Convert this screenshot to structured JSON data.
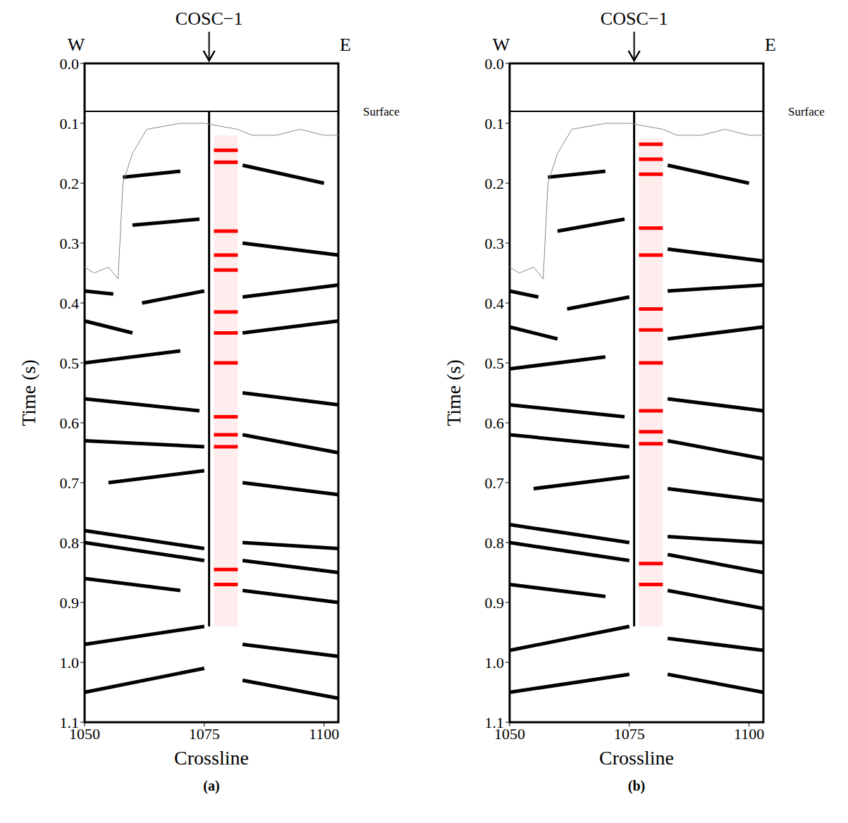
{
  "chart_data": [
    {
      "type": "seismic",
      "panel_label": "(a)",
      "x_label": "Crossline",
      "y_label": "Time (s)",
      "xlim": [
        1050,
        1103
      ],
      "xticks": [
        1050,
        1075,
        1100
      ],
      "ylim": [
        0,
        1.1
      ],
      "yticks": [
        {
          "value": 0,
          "label": "0.0"
        },
        0.1,
        0.2,
        0.3,
        0.4,
        0.5,
        0.6,
        0.7,
        0.8,
        0.9,
        {
          "value": 1,
          "label": "1.0"
        },
        1.1
      ],
      "west_label": "W",
      "east_label": "E",
      "well": {
        "text": "COSC−1",
        "x": 1076,
        "top": 0.08,
        "bottom": 0.94
      },
      "surface": {
        "text": "Surface",
        "time": 0.08
      },
      "first_break": {
        "x": [
          1050,
          1052,
          1055,
          1057,
          1058,
          1060,
          1063,
          1070,
          1075,
          1082,
          1085,
          1090,
          1095,
          1100,
          1103
        ],
        "t": [
          0.34,
          0.35,
          0.34,
          0.36,
          0.2,
          0.15,
          0.11,
          0.1,
          0.1,
          0.11,
          0.12,
          0.12,
          0.11,
          0.12,
          0.12
        ]
      },
      "vsp": {
        "x_start": 1077,
        "x_end": 1082,
        "top": 0.12,
        "bottom": 0.94,
        "color": "#ff0000",
        "events": [
          0.145,
          0.165,
          0.28,
          0.32,
          0.345,
          0.415,
          0.45,
          0.5,
          0.59,
          0.62,
          0.64,
          0.845,
          0.87
        ]
      },
      "reflectors": [
        [
          1050,
          0.38,
          1056,
          0.385
        ],
        [
          1058,
          0.19,
          1070,
          0.18
        ],
        [
          1083,
          0.17,
          1100,
          0.2
        ],
        [
          1060,
          0.27,
          1074,
          0.26
        ],
        [
          1083,
          0.3,
          1103,
          0.32
        ],
        [
          1050,
          0.43,
          1060,
          0.45
        ],
        [
          1062,
          0.4,
          1075,
          0.38
        ],
        [
          1083,
          0.39,
          1103,
          0.37
        ],
        [
          1050,
          0.5,
          1070,
          0.48
        ],
        [
          1083,
          0.45,
          1103,
          0.43
        ],
        [
          1050,
          0.56,
          1074,
          0.58
        ],
        [
          1083,
          0.55,
          1103,
          0.57
        ],
        [
          1050,
          0.63,
          1075,
          0.64
        ],
        [
          1083,
          0.62,
          1103,
          0.65
        ],
        [
          1055,
          0.7,
          1075,
          0.68
        ],
        [
          1083,
          0.7,
          1103,
          0.72
        ],
        [
          1050,
          0.78,
          1075,
          0.81
        ],
        [
          1050,
          0.8,
          1075,
          0.83
        ],
        [
          1083,
          0.83,
          1103,
          0.85
        ],
        [
          1083,
          0.8,
          1103,
          0.81
        ],
        [
          1050,
          0.86,
          1070,
          0.88
        ],
        [
          1083,
          0.88,
          1103,
          0.9
        ],
        [
          1050,
          0.97,
          1075,
          0.94
        ],
        [
          1050,
          1.05,
          1075,
          1.01
        ],
        [
          1083,
          1.03,
          1103,
          1.06
        ],
        [
          1083,
          0.97,
          1103,
          0.99
        ]
      ]
    },
    {
      "type": "seismic",
      "panel_label": "(b)",
      "x_label": "Crossline",
      "y_label": "Time (s)",
      "xlim": [
        1050,
        1103
      ],
      "xticks": [
        1050,
        1075,
        1100
      ],
      "ylim": [
        0,
        1.1
      ],
      "yticks": [
        {
          "value": 0,
          "label": "0.0"
        },
        0.1,
        0.2,
        0.3,
        0.4,
        0.5,
        0.6,
        0.7,
        0.8,
        0.9,
        {
          "value": 1,
          "label": "1.0"
        },
        1.1
      ],
      "west_label": "W",
      "east_label": "E",
      "well": {
        "text": "COSC−1",
        "x": 1076,
        "top": 0.08,
        "bottom": 0.94
      },
      "surface": {
        "text": "Surface",
        "time": 0.08
      },
      "first_break": {
        "x": [
          1050,
          1052,
          1055,
          1057,
          1058,
          1060,
          1063,
          1070,
          1075,
          1082,
          1085,
          1090,
          1095,
          1100,
          1103
        ],
        "t": [
          0.34,
          0.35,
          0.34,
          0.36,
          0.2,
          0.15,
          0.11,
          0.1,
          0.1,
          0.11,
          0.12,
          0.12,
          0.11,
          0.12,
          0.12
        ]
      },
      "vsp": {
        "x_start": 1077,
        "x_end": 1082,
        "top": 0.125,
        "bottom": 0.94,
        "color": "#ff0000",
        "events": [
          0.135,
          0.16,
          0.185,
          0.275,
          0.32,
          0.41,
          0.445,
          0.5,
          0.58,
          0.615,
          0.635,
          0.835,
          0.87
        ]
      },
      "reflectors": [
        [
          1050,
          0.38,
          1056,
          0.39
        ],
        [
          1058,
          0.19,
          1070,
          0.18
        ],
        [
          1083,
          0.17,
          1100,
          0.2
        ],
        [
          1060,
          0.28,
          1074,
          0.26
        ],
        [
          1083,
          0.31,
          1103,
          0.33
        ],
        [
          1050,
          0.44,
          1060,
          0.46
        ],
        [
          1062,
          0.41,
          1075,
          0.39
        ],
        [
          1083,
          0.38,
          1103,
          0.37
        ],
        [
          1050,
          0.51,
          1070,
          0.49
        ],
        [
          1083,
          0.46,
          1103,
          0.44
        ],
        [
          1050,
          0.57,
          1074,
          0.59
        ],
        [
          1083,
          0.56,
          1103,
          0.58
        ],
        [
          1050,
          0.62,
          1075,
          0.64
        ],
        [
          1083,
          0.63,
          1103,
          0.66
        ],
        [
          1055,
          0.71,
          1075,
          0.69
        ],
        [
          1083,
          0.71,
          1103,
          0.73
        ],
        [
          1050,
          0.77,
          1075,
          0.8
        ],
        [
          1050,
          0.8,
          1075,
          0.83
        ],
        [
          1083,
          0.82,
          1103,
          0.85
        ],
        [
          1083,
          0.79,
          1103,
          0.8
        ],
        [
          1050,
          0.87,
          1070,
          0.89
        ],
        [
          1083,
          0.88,
          1103,
          0.91
        ],
        [
          1050,
          0.98,
          1075,
          0.94
        ],
        [
          1050,
          1.05,
          1075,
          1.02
        ],
        [
          1083,
          1.02,
          1103,
          1.05
        ],
        [
          1083,
          0.96,
          1103,
          0.98
        ]
      ]
    }
  ]
}
